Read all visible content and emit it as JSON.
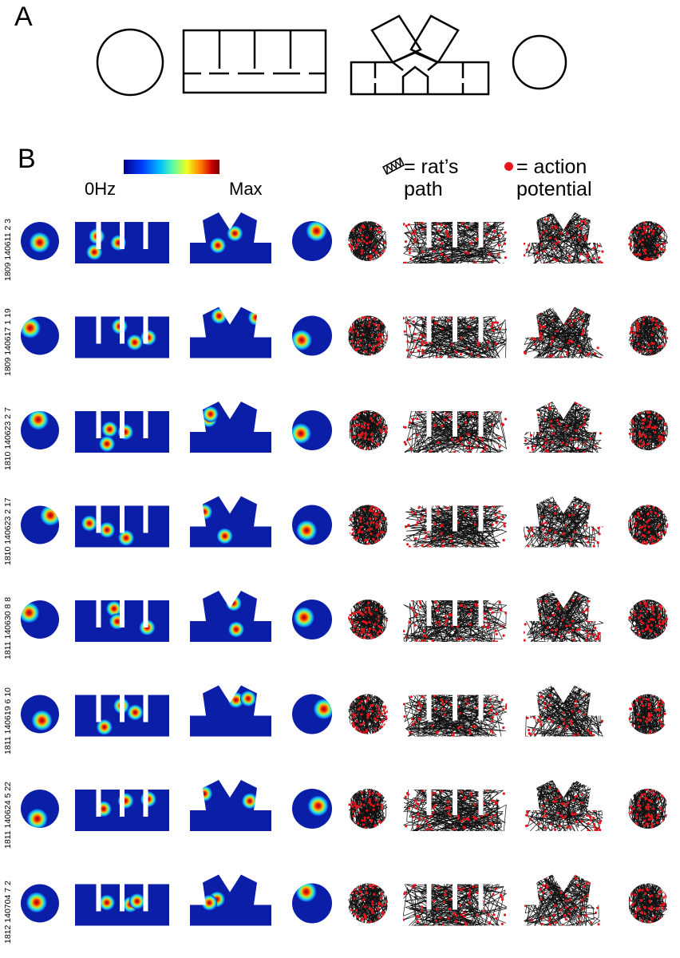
{
  "figure": {
    "panel_a": {
      "letter": "A"
    },
    "panel_b": {
      "letter": "B"
    },
    "colorbar": {
      "min_label": "0Hz",
      "max_label": "Max"
    },
    "legend": {
      "path_text": "= rat’s path",
      "action_potential_text": "= action potential",
      "path_color": "#000000",
      "spike_color": "#e8141b"
    },
    "environments": [
      "circle",
      "four-room-linear",
      "radial-arm-maze",
      "circle"
    ],
    "cells": [
      {
        "label": "1809 140611 2 3"
      },
      {
        "label": "1809 140617 1 19"
      },
      {
        "label": "1810 140623 2 7"
      },
      {
        "label": "1810 140623 2 17"
      },
      {
        "label": "1811 140630 8 8"
      },
      {
        "label": "1811 140619 6 10"
      },
      {
        "label": "1811 140624 5 22"
      },
      {
        "label": "1812 140704 7 2"
      }
    ],
    "colors": {
      "rate_map_background": "#0a1ea8",
      "path": "#111111",
      "spikes": "#e8141b"
    }
  }
}
